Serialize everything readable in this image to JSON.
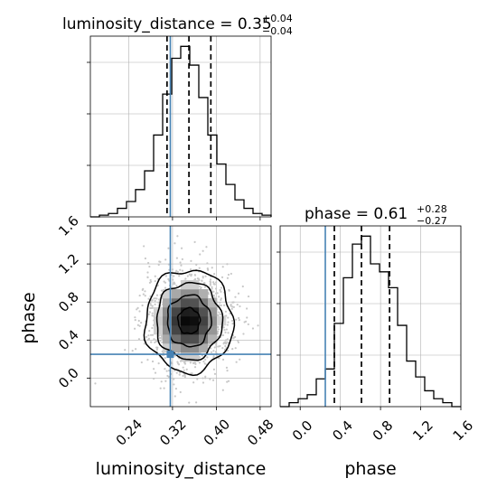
{
  "chart_data": [
    {
      "type": "step-histogram",
      "panel": "marginal-luminosity_distance",
      "title_param": "luminosity_distance",
      "title_value": "0.35",
      "title_plus": "+0.04",
      "title_minus": "−0.04",
      "xlim": [
        0.17,
        0.5
      ],
      "bin_edges": [
        0.17,
        0.1865,
        0.203,
        0.2195,
        0.236,
        0.2525,
        0.269,
        0.2855,
        0.302,
        0.3185,
        0.335,
        0.3515,
        0.368,
        0.3845,
        0.401,
        0.4175,
        0.434,
        0.4505,
        0.467,
        0.4835,
        0.5
      ],
      "counts": [
        0,
        1,
        2,
        5,
        9,
        16,
        27,
        48,
        72,
        93,
        100,
        89,
        70,
        48,
        31,
        19,
        10,
        5,
        2,
        1
      ],
      "quantile_lines": [
        0.31,
        0.35,
        0.39
      ],
      "truth": 0.316
    },
    {
      "type": "step-histogram",
      "panel": "marginal-phase",
      "title_param": "phase",
      "title_value": "0.61",
      "title_plus": "+0.28",
      "title_minus": "−0.27",
      "xlim": [
        -0.2,
        1.6
      ],
      "xticks": [
        "0.0",
        "0.4",
        "0.8",
        "1.2",
        "1.6"
      ],
      "xlabel": "phase",
      "bin_edges": [
        -0.2,
        -0.11,
        -0.02,
        0.07,
        0.16,
        0.25,
        0.34,
        0.43,
        0.52,
        0.61,
        0.7,
        0.79,
        0.88,
        0.97,
        1.06,
        1.15,
        1.24,
        1.33,
        1.42,
        1.51,
        1.6
      ],
      "counts": [
        0,
        2,
        4,
        6,
        14,
        19,
        42,
        65,
        82,
        86,
        72,
        68,
        60,
        41,
        23,
        15,
        8,
        4,
        2,
        0
      ],
      "quantile_lines": [
        0.34,
        0.61,
        0.89
      ],
      "truth": 0.25
    },
    {
      "type": "2d-density",
      "panel": "joint",
      "xlabel": "luminosity_distance",
      "ylabel": "phase",
      "xlim": [
        0.17,
        0.5
      ],
      "ylim": [
        -0.3,
        1.6
      ],
      "xticks": [
        "0.24",
        "0.32",
        "0.40",
        "0.48"
      ],
      "yticks": [
        "0.0",
        "0.4",
        "0.8",
        "1.2",
        "1.6"
      ],
      "center": [
        0.35,
        0.6
      ],
      "spread": [
        0.04,
        0.27
      ],
      "truth": [
        0.316,
        0.25
      ],
      "contour_levels": [
        "0.5-sigma",
        "1-sigma",
        "1.5-sigma",
        "2-sigma"
      ],
      "grid": true
    }
  ],
  "colors": {
    "truth": "#4682b4",
    "line": "#000000",
    "grid": "#b0b0b0",
    "scatter": "#c8c8c8"
  }
}
